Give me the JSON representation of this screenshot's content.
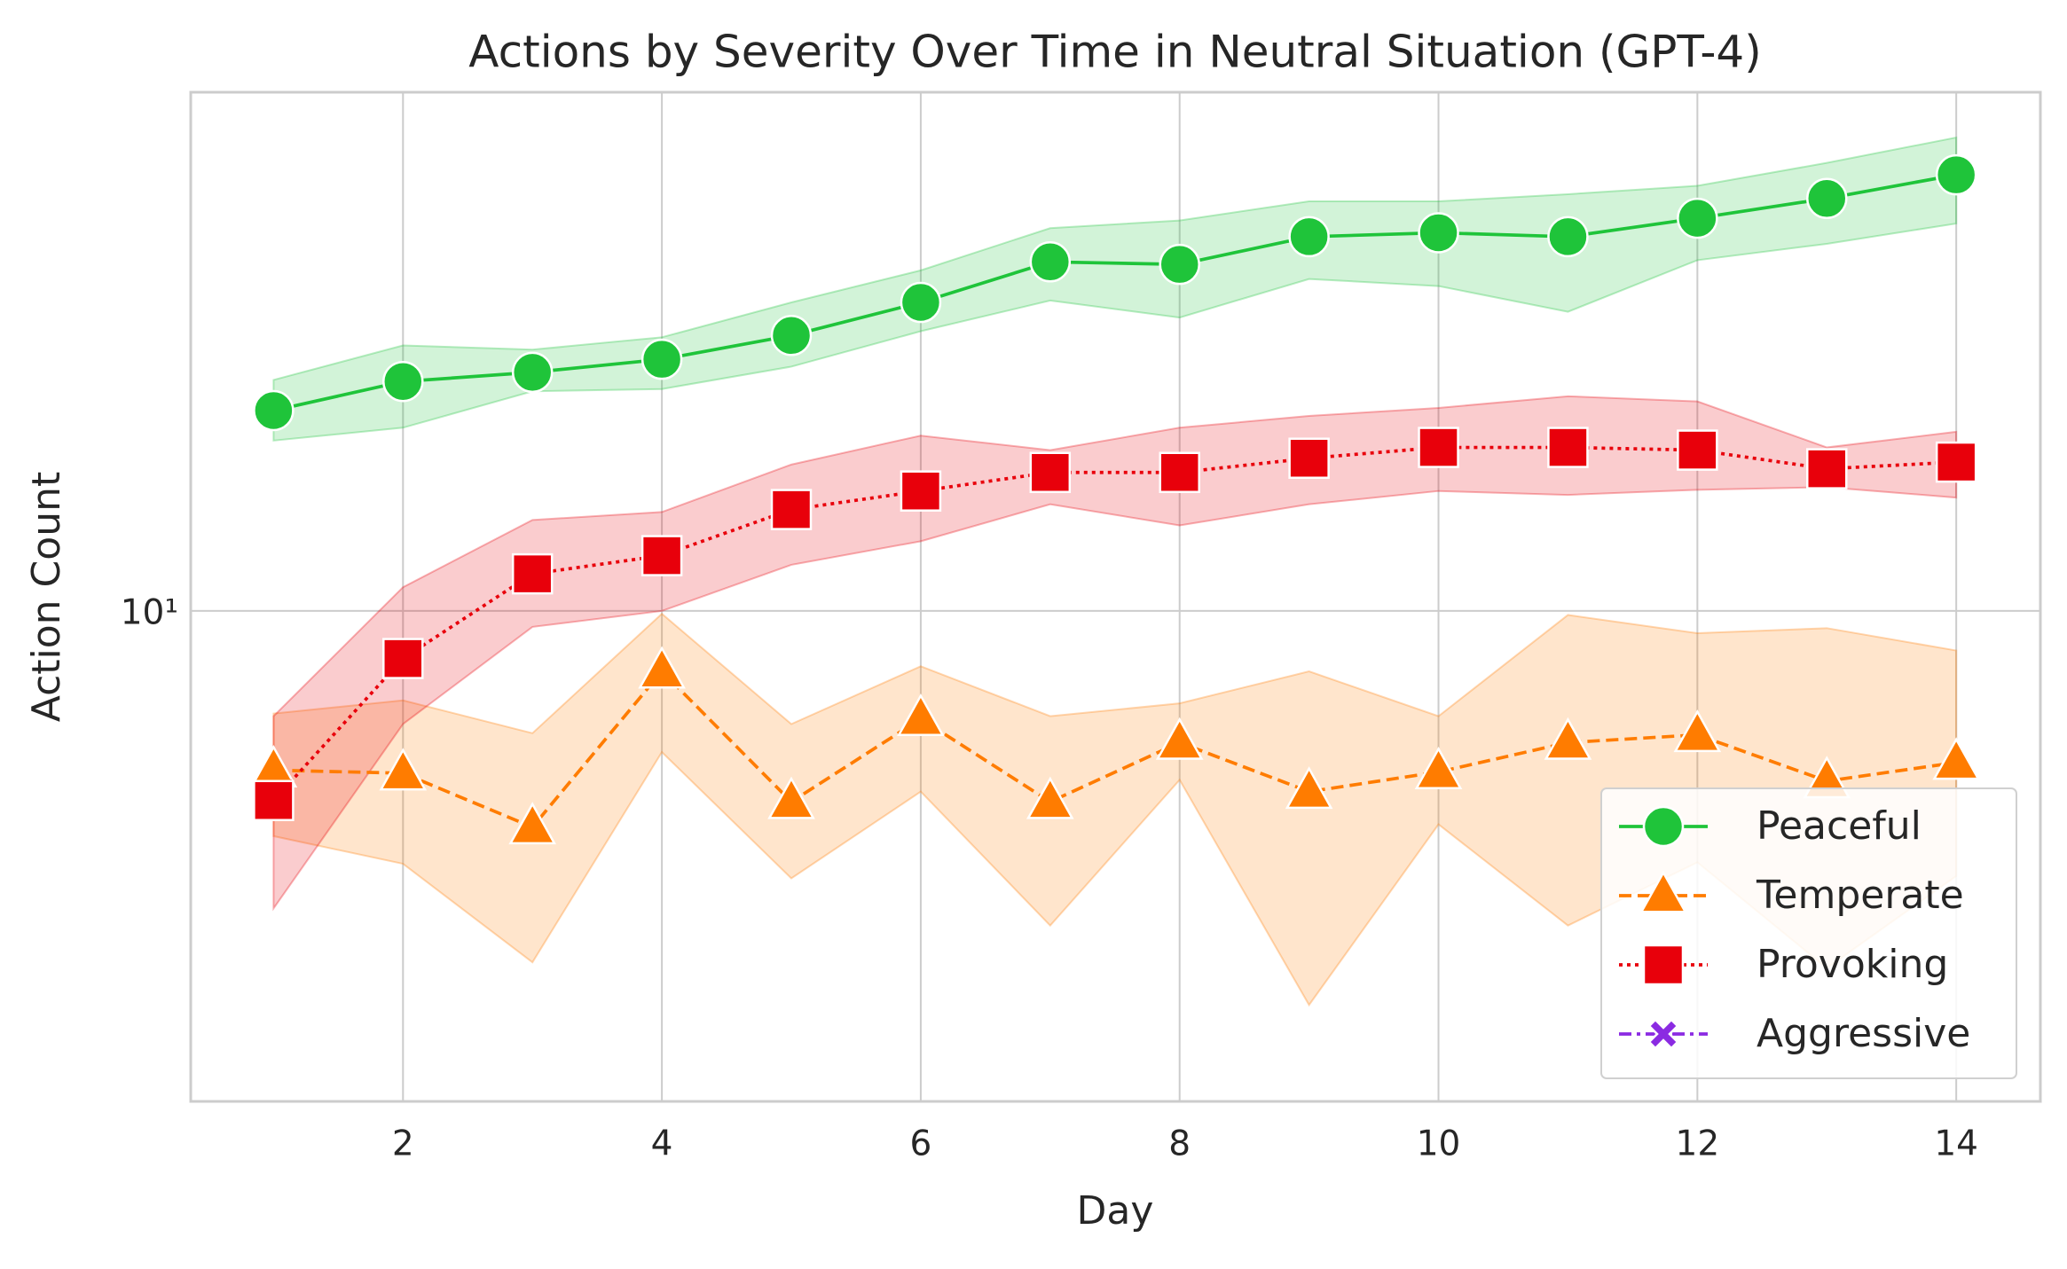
{
  "chart_data": {
    "type": "line",
    "title": "Actions by Severity Over Time in Neutral Situation (GPT-4)",
    "xlabel": "Day",
    "ylabel": "Action Count",
    "x": [
      1,
      2,
      3,
      4,
      5,
      6,
      7,
      8,
      9,
      10,
      11,
      12,
      13,
      14
    ],
    "xlim": [
      0.36,
      14.65
    ],
    "xticks": [
      2,
      4,
      6,
      8,
      10,
      12,
      14
    ],
    "ylim": [
      2.94,
      36.5
    ],
    "yticks": [
      {
        "value": 10,
        "label": "10¹"
      }
    ],
    "yscale": "log",
    "grid": true,
    "legend": "lower right",
    "series": [
      {
        "name": "Peaceful",
        "color": "#1fc43a",
        "marker": "circle",
        "linestyle": "solid",
        "values": [
          16.49,
          17.73,
          18.14,
          18.74,
          19.89,
          21.6,
          23.9,
          23.75,
          25.45,
          25.7,
          25.45,
          26.65,
          28.0,
          29.7
        ],
        "lower": [
          15.3,
          15.8,
          17.3,
          17.4,
          18.4,
          20.1,
          21.7,
          20.8,
          22.9,
          22.5,
          21.1,
          24.0,
          25.0,
          26.3
        ],
        "upper": [
          17.8,
          19.4,
          19.2,
          19.8,
          21.6,
          23.4,
          26.0,
          26.5,
          27.8,
          27.8,
          28.3,
          28.9,
          30.6,
          32.6
        ]
      },
      {
        "name": "Temperate",
        "color": "#ff7c00",
        "marker": "triangle",
        "linestyle": "dashed",
        "values": [
          6.72,
          6.67,
          5.83,
          8.6,
          6.21,
          7.64,
          6.21,
          7.2,
          6.37,
          6.69,
          7.2,
          7.34,
          6.54,
          6.85
        ],
        "lower": [
          5.7,
          5.32,
          4.16,
          7.03,
          5.13,
          6.37,
          4.56,
          6.56,
          3.74,
          5.87,
          4.56,
          5.34,
          4.1,
          5.16
        ],
        "upper": [
          7.74,
          8.0,
          7.37,
          9.93,
          7.54,
          8.71,
          7.69,
          7.94,
          8.6,
          7.69,
          9.9,
          9.46,
          9.58,
          9.06
        ]
      },
      {
        "name": "Provoking",
        "color": "#e8000b",
        "marker": "square",
        "linestyle": "dotted",
        "values": [
          6.23,
          8.88,
          10.97,
          11.48,
          12.88,
          13.49,
          14.13,
          14.13,
          14.64,
          15.04,
          15.04,
          14.94,
          14.26,
          14.5
        ],
        "lower": [
          4.76,
          7.54,
          9.61,
          10.0,
          11.22,
          11.9,
          13.05,
          12.38,
          13.05,
          13.49,
          13.36,
          13.53,
          13.62,
          13.27
        ],
        "upper": [
          7.69,
          10.61,
          12.55,
          12.8,
          14.41,
          15.49,
          14.94,
          15.8,
          16.27,
          16.6,
          17.09,
          16.87,
          15.04,
          15.64
        ]
      },
      {
        "name": "Aggressive",
        "color": "#8b2be2",
        "marker": "x",
        "linestyle": "dashdot",
        "values": [
          null,
          null,
          null,
          null,
          null,
          null,
          null,
          null,
          null,
          null,
          null,
          null,
          null,
          null
        ]
      }
    ]
  }
}
